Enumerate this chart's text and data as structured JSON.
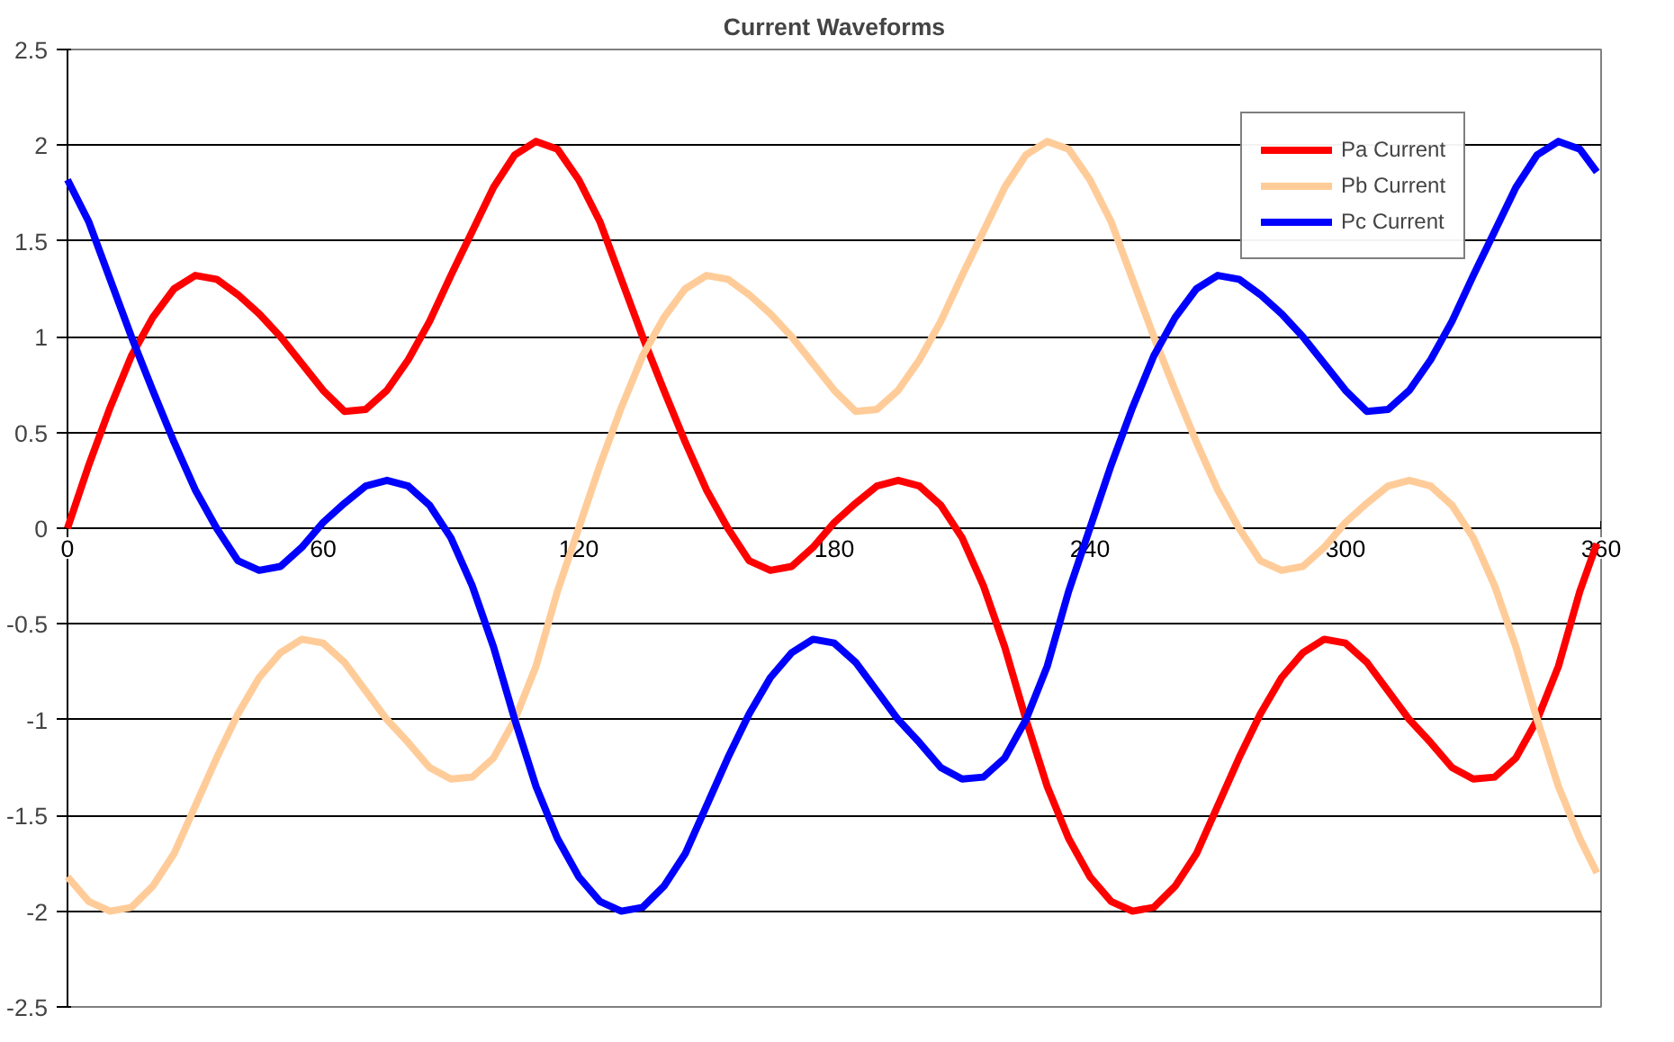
{
  "chart_data": {
    "type": "line",
    "title": "Current Waveforms",
    "x": [
      0,
      5,
      10,
      15,
      20,
      25,
      30,
      35,
      40,
      45,
      50,
      55,
      60,
      65,
      70,
      75,
      80,
      85,
      90,
      95,
      100,
      105,
      110,
      115,
      120,
      125,
      130,
      135,
      140,
      145,
      150,
      155,
      160,
      165,
      170,
      175,
      180,
      185,
      190,
      195,
      200,
      205,
      210,
      215,
      220,
      225,
      230,
      235,
      240,
      245,
      250,
      255,
      260,
      265,
      270,
      275,
      280,
      285,
      290,
      295,
      300,
      305,
      310,
      315,
      320,
      325,
      330,
      335,
      340,
      345,
      350,
      355,
      359
    ],
    "series": [
      {
        "name": "Pa Current",
        "color": "#ff0000",
        "values": [
          0,
          0.33,
          0.63,
          0.9,
          1.1,
          1.25,
          1.32,
          1.3,
          1.22,
          1.12,
          1.0,
          0.86,
          0.72,
          0.61,
          0.62,
          0.72,
          0.88,
          1.08,
          1.32,
          1.55,
          1.78,
          1.95,
          2.02,
          1.98,
          1.82,
          1.6,
          1.3,
          1.0,
          0.72,
          0.45,
          0.2,
          0.0,
          -0.17,
          -0.22,
          -0.2,
          -0.1,
          0.03,
          0.13,
          0.22,
          0.25,
          0.22,
          0.12,
          -0.05,
          -0.3,
          -0.62,
          -1.0,
          -1.35,
          -1.62,
          -1.82,
          -1.95,
          -2.0,
          -1.98,
          -1.87,
          -1.7,
          -1.45,
          -1.2,
          -0.97,
          -0.78,
          -0.65,
          -0.58,
          -0.6,
          -0.7,
          -0.85,
          -1.0,
          -1.12,
          -1.25,
          -1.31,
          -1.3,
          -1.2,
          -1.0,
          -0.72,
          -0.33,
          -0.08
        ]
      },
      {
        "name": "Pb Current",
        "color": "#ffcc99",
        "values": [
          -1.82,
          -1.95,
          -2.0,
          -1.98,
          -1.87,
          -1.7,
          -1.45,
          -1.2,
          -0.97,
          -0.78,
          -0.65,
          -0.58,
          -0.6,
          -0.7,
          -0.85,
          -1.0,
          -1.12,
          -1.25,
          -1.31,
          -1.3,
          -1.2,
          -1.0,
          -0.72,
          -0.33,
          0,
          0.33,
          0.63,
          0.9,
          1.1,
          1.25,
          1.32,
          1.3,
          1.22,
          1.12,
          1.0,
          0.86,
          0.72,
          0.61,
          0.62,
          0.72,
          0.88,
          1.08,
          1.32,
          1.55,
          1.78,
          1.95,
          2.02,
          1.98,
          1.82,
          1.6,
          1.3,
          1.0,
          0.72,
          0.45,
          0.2,
          0.0,
          -0.17,
          -0.22,
          -0.2,
          -0.1,
          0.03,
          0.13,
          0.22,
          0.25,
          0.22,
          0.12,
          -0.05,
          -0.3,
          -0.62,
          -1.0,
          -1.35,
          -1.62,
          -1.8
        ]
      },
      {
        "name": "Pc Current",
        "color": "#0000ff",
        "values": [
          1.82,
          1.6,
          1.3,
          1.0,
          0.72,
          0.45,
          0.2,
          0.0,
          -0.17,
          -0.22,
          -0.2,
          -0.1,
          0.03,
          0.13,
          0.22,
          0.25,
          0.22,
          0.12,
          -0.05,
          -0.3,
          -0.62,
          -1.0,
          -1.35,
          -1.62,
          -1.82,
          -1.95,
          -2.0,
          -1.98,
          -1.87,
          -1.7,
          -1.45,
          -1.2,
          -0.97,
          -0.78,
          -0.65,
          -0.58,
          -0.6,
          -0.7,
          -0.85,
          -1.0,
          -1.12,
          -1.25,
          -1.31,
          -1.3,
          -1.2,
          -1.0,
          -0.72,
          -0.33,
          0,
          0.33,
          0.63,
          0.9,
          1.1,
          1.25,
          1.32,
          1.3,
          1.22,
          1.12,
          1.0,
          0.86,
          0.72,
          0.61,
          0.62,
          0.72,
          0.88,
          1.08,
          1.32,
          1.55,
          1.78,
          1.95,
          2.02,
          1.98,
          1.86
        ]
      }
    ],
    "xlim": [
      0,
      360
    ],
    "xticks": [
      0,
      60,
      120,
      180,
      240,
      300,
      360
    ],
    "ylim": [
      -2.5,
      2.5
    ],
    "yticks": [
      {
        "value": -2.5,
        "label": "-2.5"
      },
      {
        "value": -2,
        "label": "-2"
      },
      {
        "value": -1.5,
        "label": "-1.5"
      },
      {
        "value": -1,
        "label": "-1"
      },
      {
        "value": -0.5,
        "label": "-0.5"
      },
      {
        "value": 0,
        "label": "0"
      },
      {
        "value": 0.5,
        "label": "0.5"
      },
      {
        "value": 1,
        "label": "1"
      },
      {
        "value": 1.5,
        "label": "1.5"
      },
      {
        "value": 2,
        "label": "2"
      },
      {
        "value": 2.5,
        "label": "2.5"
      }
    ],
    "grid": "y",
    "legend": "top right",
    "marker": "none",
    "line_style": "solid"
  }
}
